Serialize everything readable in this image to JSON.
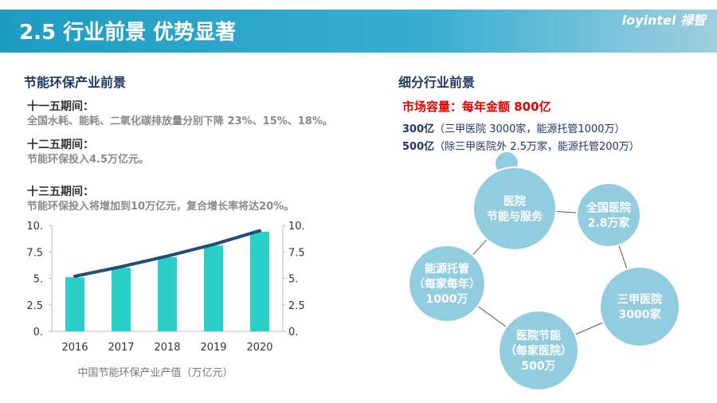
{
  "header": {
    "title": "2.5 行业前景 优势显著",
    "logo": "loyintel 禄智"
  },
  "left": {
    "title": "节能环保产业前景",
    "periods": [
      {
        "heading": "十一五期间：",
        "text": "全国水耗、能耗、二氧化碳排放量分别下降 23%、15%、18%。"
      },
      {
        "heading": "十二五期间：",
        "text": "节能环保投入4.5万亿元。"
      },
      {
        "heading": "十三五期间：",
        "text": "节能环保投入将增加到10万亿元，复合增长率将达20%。"
      }
    ]
  },
  "right": {
    "title": "细分行业前景",
    "headline": "市场容量：每年金额 800亿",
    "items": [
      {
        "strong": "300亿",
        "note": "（三甲医院 3000家，能源托管1000万）"
      },
      {
        "strong": "500亿",
        "note": "（除三甲医院外 2.5万家，能源托管200万）"
      }
    ],
    "nodes": [
      {
        "lines": [
          "医院",
          "节能与服务"
        ]
      },
      {
        "lines": [
          "全国医院",
          "2.8万家"
        ]
      },
      {
        "lines": [
          "三甲医院",
          "3000家"
        ]
      },
      {
        "lines": [
          "医院节能",
          "（每家医院）",
          "500万"
        ]
      },
      {
        "lines": [
          "能源托管",
          "（每家每年）",
          "1000万"
        ]
      }
    ]
  },
  "chart_data": {
    "type": "bar",
    "caption": "中国节能环保产业产值（万亿元）",
    "categories": [
      "2016",
      "2017",
      "2018",
      "2019",
      "2020"
    ],
    "series": [
      {
        "type": "bar",
        "color": "#2ccfc8",
        "values": [
          5.1,
          6.0,
          7.0,
          8.1,
          9.4
        ]
      },
      {
        "type": "line",
        "axis": "y2",
        "color": "#1f4e79",
        "values": [
          5.2,
          6.1,
          7.1,
          8.2,
          9.5
        ]
      }
    ],
    "ylim": [
      0,
      10
    ],
    "yticks": [
      {
        "value": 0,
        "label": "0."
      },
      2.5,
      {
        "value": 5,
        "label": "5."
      },
      7.5,
      {
        "value": 10,
        "label": "10."
      }
    ],
    "y2lim": [
      0,
      10
    ],
    "y2ticks": [
      {
        "value": 0,
        "label": "0."
      },
      2.5,
      {
        "value": 5,
        "label": "5."
      },
      7.5,
      {
        "value": 10,
        "label": "10."
      }
    ]
  }
}
